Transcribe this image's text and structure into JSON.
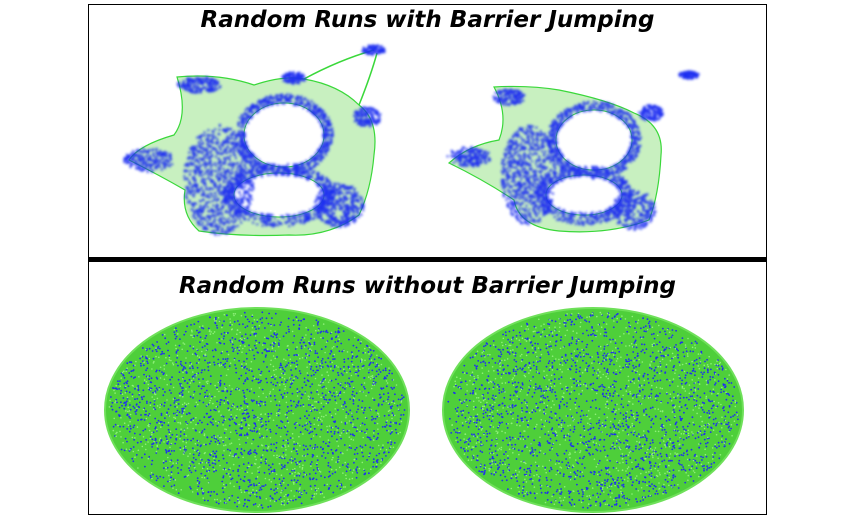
{
  "panels": [
    {
      "title": "Random Runs with Barrier Jumping"
    },
    {
      "title": "Random Runs without Barrier Jumping"
    }
  ],
  "colors": {
    "node": "#1f2ff0",
    "edge": "#3ad83a",
    "fill_light": "#c8f0c0",
    "fill_dense": "#4ecf3a",
    "divider": "#000000"
  }
}
